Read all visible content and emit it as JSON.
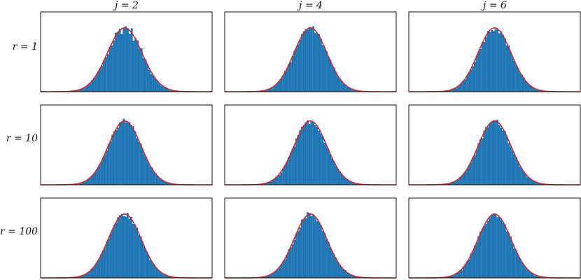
{
  "col_labels": [
    "j = 2",
    "j = 4",
    "j = 6"
  ],
  "row_labels": [
    "r = 1",
    "r = 10",
    "r = 100"
  ],
  "colors": {
    "bar": "#1f77b4",
    "curve": "#d62728",
    "frame": "#111111"
  },
  "chart_data": {
    "type": "histogram-grid",
    "grid": {
      "rows": 3,
      "cols": 3,
      "row_titles": [
        "r = 1",
        "r = 10",
        "r = 100"
      ],
      "col_titles": [
        "j = 2",
        "j = 4",
        "j = 6"
      ]
    },
    "xlim": [
      -4.2,
      6.2
    ],
    "ylim": [
      0,
      1.25
    ],
    "overlay": "normal density curve",
    "ticks": "none",
    "panels": [
      {
        "row": "r = 1",
        "col": "j = 2",
        "mean": 0.9,
        "sd": 1.05,
        "peak": 1.0,
        "bins": 70
      },
      {
        "row": "r = 1",
        "col": "j = 4",
        "mean": 1.0,
        "sd": 1.0,
        "peak": 1.0,
        "bins": 70
      },
      {
        "row": "r = 1",
        "col": "j = 6",
        "mean": 1.0,
        "sd": 1.0,
        "peak": 1.0,
        "bins": 70
      },
      {
        "row": "r = 10",
        "col": "j = 2",
        "mean": 0.9,
        "sd": 1.0,
        "peak": 1.0,
        "bins": 70
      },
      {
        "row": "r = 10",
        "col": "j = 4",
        "mean": 1.0,
        "sd": 1.0,
        "peak": 1.0,
        "bins": 70
      },
      {
        "row": "r = 10",
        "col": "j = 6",
        "mean": 1.0,
        "sd": 1.0,
        "peak": 1.0,
        "bins": 70
      },
      {
        "row": "r = 100",
        "col": "j = 2",
        "mean": 0.9,
        "sd": 1.0,
        "peak": 1.0,
        "bins": 70
      },
      {
        "row": "r = 100",
        "col": "j = 4",
        "mean": 1.0,
        "sd": 1.0,
        "peak": 1.0,
        "bins": 70
      },
      {
        "row": "r = 100",
        "col": "j = 6",
        "mean": 1.0,
        "sd": 1.0,
        "peak": 1.0,
        "bins": 70
      }
    ]
  }
}
